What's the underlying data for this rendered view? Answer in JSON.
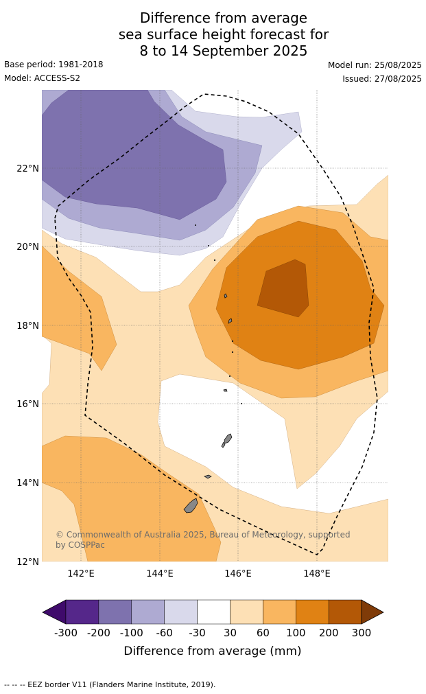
{
  "title": {
    "line1": "Difference from average",
    "line2": "sea surface height forecast for",
    "line3": "8 to 14 September 2025"
  },
  "meta": {
    "base_period": "Base period: 1981-2018",
    "model": "Model: ACCESS-S2",
    "model_run": "Model run: 25/08/2025",
    "issued": "Issued: 27/08/2025"
  },
  "map": {
    "lat_labels": [
      "22°N",
      "20°N",
      "18°N",
      "16°N",
      "14°N",
      "12°N"
    ],
    "lon_labels": [
      "142°E",
      "144°E",
      "146°E",
      "148°E"
    ],
    "copyright": "© Commonwealth of Australia 2025, Bureau of Meteorology, supported by COSPPac"
  },
  "colorbar": {
    "labels": [
      "-300",
      "-200",
      "-100",
      "-60",
      "-30",
      "30",
      "60",
      "100",
      "200",
      "300"
    ],
    "colors": [
      "#3f0b6b",
      "#55278a",
      "#7e72ae",
      "#aeaad2",
      "#d9d9eb",
      "#ffffff",
      "#fde0b5",
      "#f9b660",
      "#e08214",
      "#b35806",
      "#7f3b08"
    ],
    "title": "Difference from average (mm)"
  },
  "footer": "--  --  -- EEZ border V11 (Flanders Marine Institute, 2019)."
}
